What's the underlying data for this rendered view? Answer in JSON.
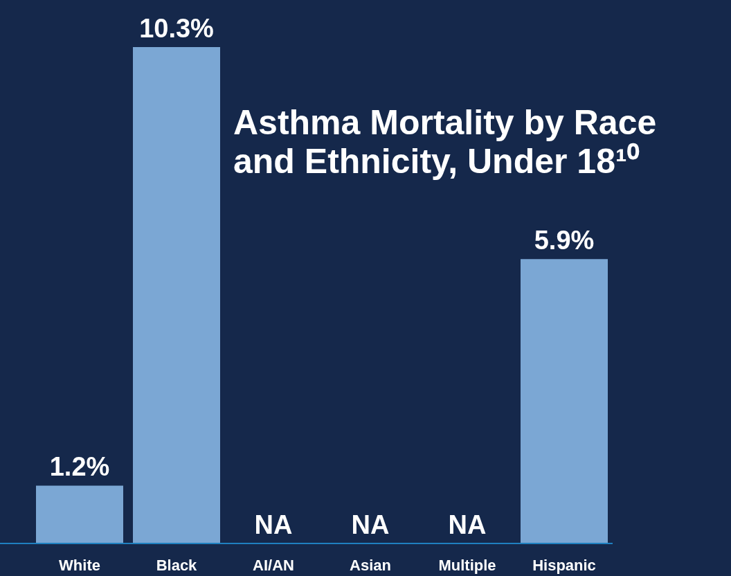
{
  "chart_data": {
    "type": "bar",
    "title": "Asthma Mortality by Race and Ethnicity, Under 18¹⁰",
    "categories": [
      "White",
      "Black",
      "AI/AN",
      "Asian",
      "Multiple",
      "Hispanic"
    ],
    "values": [
      1.2,
      10.3,
      null,
      null,
      null,
      5.9
    ],
    "value_labels": [
      "1.2%",
      "10.3%",
      "NA",
      "NA",
      "NA",
      "5.9%"
    ],
    "color": "#7ba7d4"
  }
}
